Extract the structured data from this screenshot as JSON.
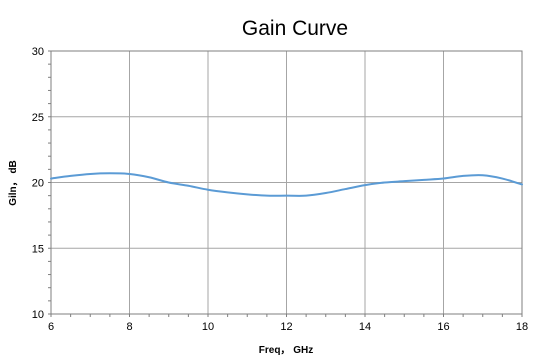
{
  "chart_data": {
    "type": "line",
    "title": "Gain Curve",
    "xlabel": "Freq， GHz",
    "ylabel": "Giln， dB",
    "xlim": [
      6,
      18
    ],
    "ylim": [
      10,
      30
    ],
    "x_ticks": [
      "6",
      "8",
      "10",
      "12",
      "14",
      "16",
      "18"
    ],
    "y_ticks": [
      "10",
      "15",
      "20",
      "25",
      "30"
    ],
    "grid": true,
    "legend": "none",
    "series": [
      {
        "color": "#5b9bd5",
        "x": [
          6,
          6.5,
          7,
          7.5,
          8,
          8.5,
          9,
          9.5,
          10,
          10.5,
          11,
          11.5,
          12,
          12.5,
          13,
          13.5,
          14,
          14.5,
          15,
          15.5,
          16,
          16.5,
          17,
          17.5,
          18
        ],
        "y": [
          20.3,
          20.5,
          20.65,
          20.7,
          20.65,
          20.4,
          20.0,
          19.75,
          19.45,
          19.25,
          19.1,
          19.0,
          19.0,
          19.0,
          19.2,
          19.5,
          19.8,
          20.0,
          20.1,
          20.2,
          20.3,
          20.5,
          20.55,
          20.3,
          19.85
        ]
      }
    ]
  }
}
